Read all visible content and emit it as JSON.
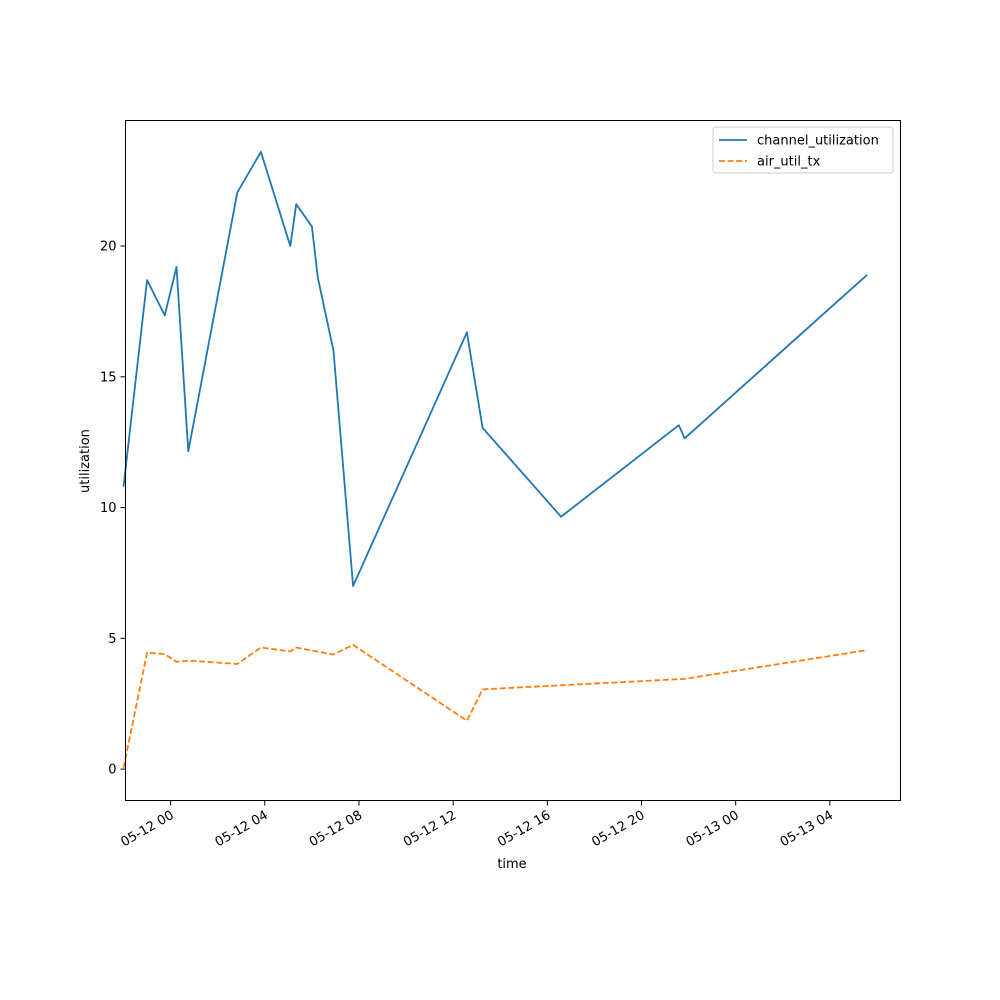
{
  "chart_data": {
    "type": "line",
    "title": "",
    "xlabel": "time",
    "ylabel": "utilization",
    "x_axis_type": "datetime",
    "xlim": [
      "2024-05-11 22:05",
      "2024-05-13 07:00"
    ],
    "ylim": [
      -1.2,
      24.8
    ],
    "x_ticks": [
      {
        "value": "2024-05-12 00:00",
        "label": "05-12 00"
      },
      {
        "value": "2024-05-12 04:00",
        "label": "05-12 04"
      },
      {
        "value": "2024-05-12 08:00",
        "label": "05-12 08"
      },
      {
        "value": "2024-05-12 12:00",
        "label": "05-12 12"
      },
      {
        "value": "2024-05-12 16:00",
        "label": "05-12 16"
      },
      {
        "value": "2024-05-12 20:00",
        "label": "05-12 20"
      },
      {
        "value": "2024-05-13 00:00",
        "label": "05-13 00"
      },
      {
        "value": "2024-05-13 04:00",
        "label": "05-13 04"
      }
    ],
    "y_ticks": [
      {
        "value": 0,
        "label": "0"
      },
      {
        "value": 5,
        "label": "5"
      },
      {
        "value": 10,
        "label": "10"
      },
      {
        "value": 15,
        "label": "15"
      },
      {
        "value": 20,
        "label": "20"
      }
    ],
    "legend_position": "top-right",
    "grid": false,
    "series": [
      {
        "name": "channel_utilization",
        "color": "#1f77b4",
        "line_style": "solid",
        "points": [
          {
            "x": "2024-05-11 22:00",
            "y": 10.8
          },
          {
            "x": "2024-05-11 23:00",
            "y": 18.7
          },
          {
            "x": "2024-05-11 23:45",
            "y": 17.35
          },
          {
            "x": "2024-05-12 00:15",
            "y": 19.2
          },
          {
            "x": "2024-05-12 00:45",
            "y": 12.15
          },
          {
            "x": "2024-05-12 02:50",
            "y": 22.05
          },
          {
            "x": "2024-05-12 03:50",
            "y": 23.6
          },
          {
            "x": "2024-05-12 05:05",
            "y": 20.0
          },
          {
            "x": "2024-05-12 05:20",
            "y": 21.6
          },
          {
            "x": "2024-05-12 06:00",
            "y": 20.75
          },
          {
            "x": "2024-05-12 06:15",
            "y": 18.8
          },
          {
            "x": "2024-05-12 06:55",
            "y": 16.0
          },
          {
            "x": "2024-05-12 07:45",
            "y": 7.0
          },
          {
            "x": "2024-05-12 12:35",
            "y": 16.7
          },
          {
            "x": "2024-05-12 13:15",
            "y": 13.05
          },
          {
            "x": "2024-05-12 16:35",
            "y": 9.65
          },
          {
            "x": "2024-05-12 21:35",
            "y": 13.15
          },
          {
            "x": "2024-05-12 21:50",
            "y": 12.65
          },
          {
            "x": "2024-05-13 05:35",
            "y": 18.9
          }
        ]
      },
      {
        "name": "air_util_tx",
        "color": "#ff7f0e",
        "line_style": "dashed",
        "points": [
          {
            "x": "2024-05-11 22:00",
            "y": 0.05
          },
          {
            "x": "2024-05-11 23:00",
            "y": 4.45
          },
          {
            "x": "2024-05-11 23:45",
            "y": 4.4
          },
          {
            "x": "2024-05-12 00:15",
            "y": 4.1
          },
          {
            "x": "2024-05-12 00:45",
            "y": 4.15
          },
          {
            "x": "2024-05-12 02:50",
            "y": 4.02
          },
          {
            "x": "2024-05-12 03:50",
            "y": 4.65
          },
          {
            "x": "2024-05-12 05:05",
            "y": 4.5
          },
          {
            "x": "2024-05-12 05:20",
            "y": 4.65
          },
          {
            "x": "2024-05-12 06:55",
            "y": 4.38
          },
          {
            "x": "2024-05-12 07:45",
            "y": 4.75
          },
          {
            "x": "2024-05-12 12:35",
            "y": 1.85
          },
          {
            "x": "2024-05-12 13:15",
            "y": 3.05
          },
          {
            "x": "2024-05-12 21:50",
            "y": 3.45
          },
          {
            "x": "2024-05-13 05:35",
            "y": 4.55
          }
        ]
      }
    ]
  }
}
